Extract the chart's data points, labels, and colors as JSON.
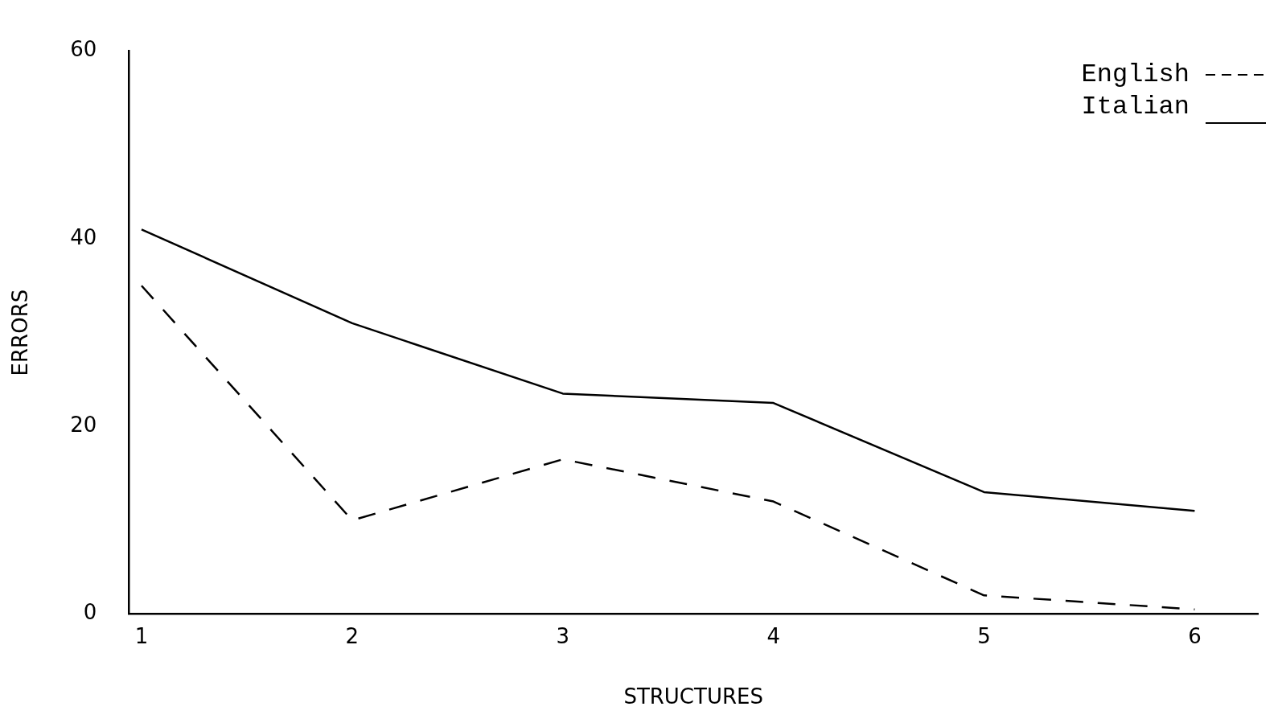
{
  "chart_data": {
    "type": "line",
    "xlabel": "STRUCTURES",
    "ylabel": "ERRORS",
    "x": [
      1,
      2,
      3,
      4,
      5,
      6
    ],
    "xlim": [
      0.94,
      6.3
    ],
    "xticks": [
      1,
      2,
      3,
      4,
      5,
      6
    ],
    "ylim": [
      0,
      60
    ],
    "yticks": [
      0,
      20,
      40,
      60
    ],
    "grid": false,
    "legend": "top right",
    "marker": "none",
    "series": [
      {
        "name": "English",
        "color": "#000000",
        "line_style": "dashed",
        "values": [
          35,
          10,
          16.5,
          12,
          2,
          0.5
        ]
      },
      {
        "name": "Italian",
        "color": "#000000",
        "line_style": "solid",
        "values": [
          41,
          31,
          23.5,
          22.5,
          13,
          11
        ]
      }
    ]
  }
}
